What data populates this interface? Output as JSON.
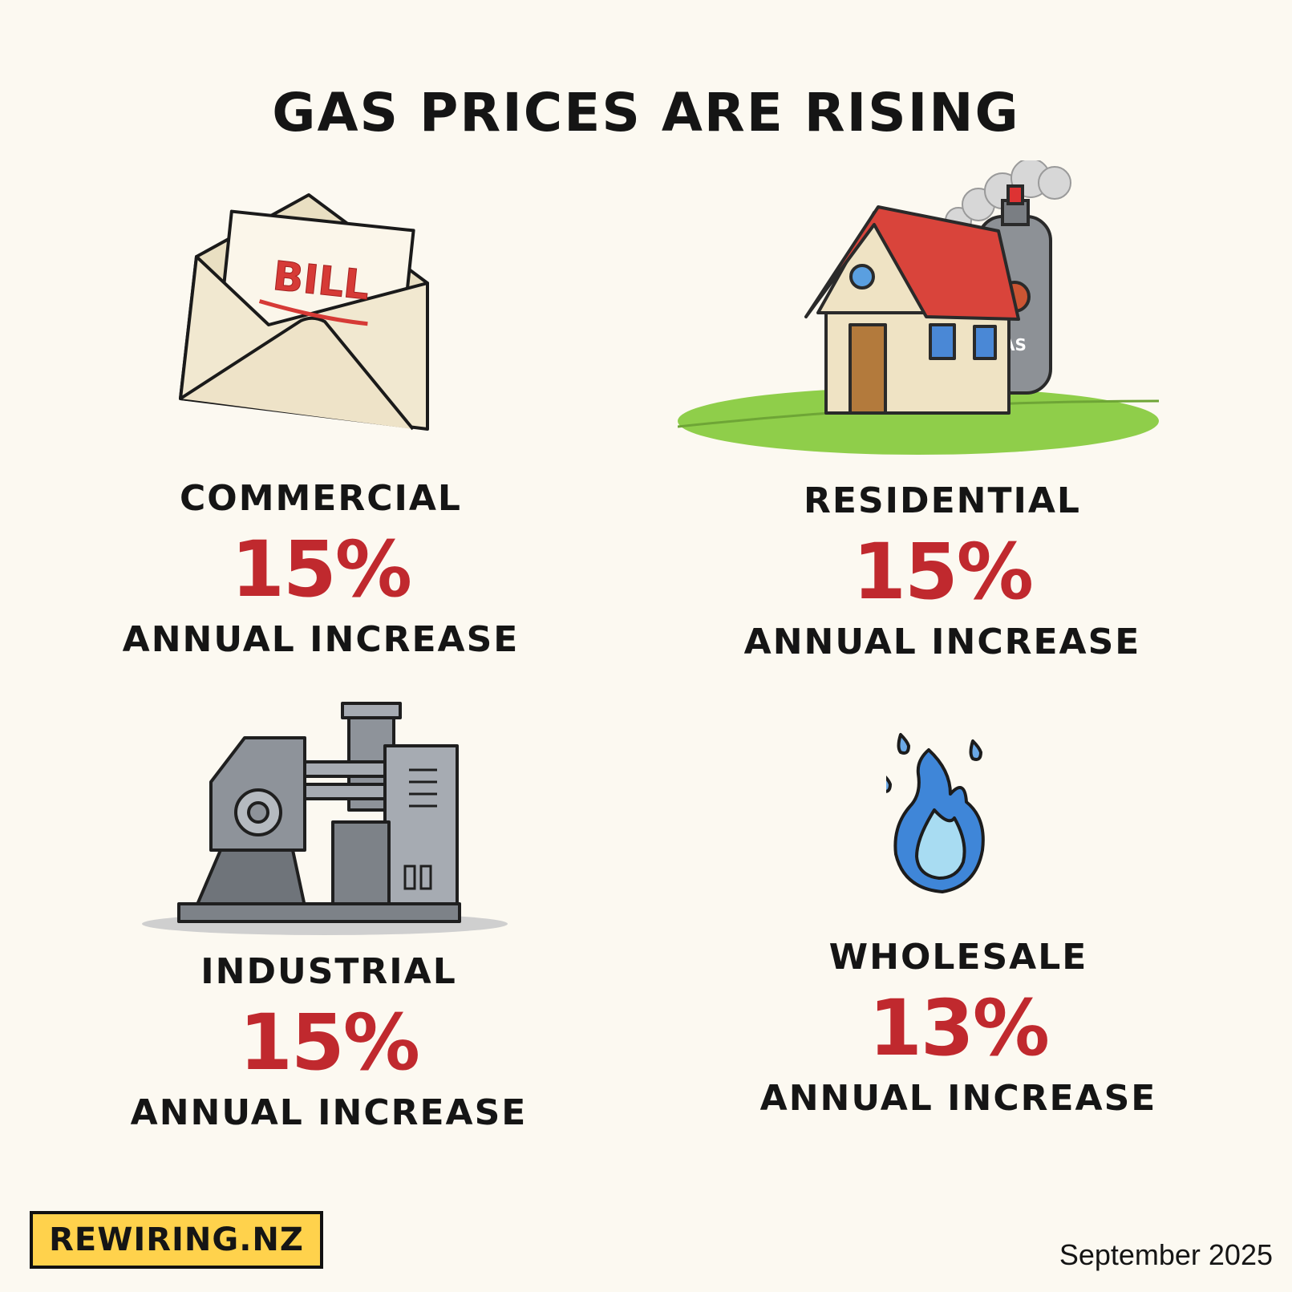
{
  "title": "GAS PRICES ARE RISING",
  "categories": [
    {
      "key": "commercial",
      "label": "COMMERCIAL",
      "value": "15%",
      "note": "ANNUAL INCREASE",
      "icon": "envelope-bill-icon"
    },
    {
      "key": "residential",
      "label": "RESIDENTIAL",
      "value": "15%",
      "note": "ANNUAL INCREASE",
      "icon": "house-gas-cylinder-icon"
    },
    {
      "key": "industrial",
      "label": "INDUSTRIAL",
      "value": "15%",
      "note": "ANNUAL INCREASE",
      "icon": "industrial-machine-icon"
    },
    {
      "key": "wholesale",
      "label": "WHOLESALE",
      "value": "13%",
      "note": "ANNUAL INCREASE",
      "icon": "blue-flame-icon"
    }
  ],
  "bill_text": "BILL",
  "gas_cylinder_text": "AS",
  "logo": "REWIRING.NZ",
  "date": "September 2025",
  "colors": {
    "accent_red": "#c0292e",
    "logo_yellow": "#ffd24c",
    "background": "#fcf9f1"
  }
}
